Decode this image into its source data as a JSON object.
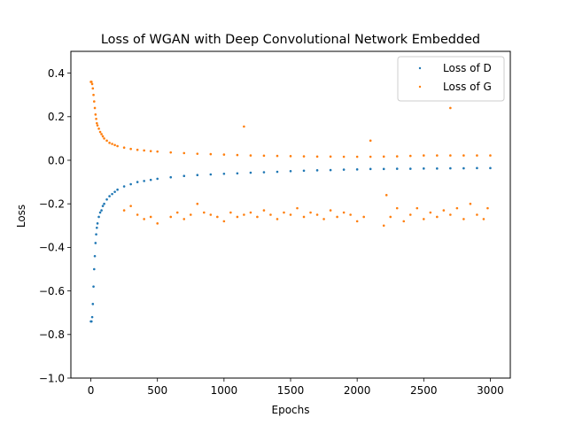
{
  "chart_data": {
    "type": "scatter",
    "title": "Loss of WGAN with Deep Convolutional Network Embedded",
    "xlabel": "Epochs",
    "ylabel": "Loss",
    "xlim": [
      -150,
      3150
    ],
    "ylim": [
      -1.0,
      0.5
    ],
    "xticks": [
      0,
      500,
      1000,
      1500,
      2000,
      2500,
      3000
    ],
    "xtick_labels": [
      "0",
      "500",
      "1000",
      "1500",
      "2000",
      "2500",
      "3000"
    ],
    "yticks": [
      -1.0,
      -0.8,
      -0.6,
      -0.4,
      -0.2,
      0.0,
      0.2,
      0.4
    ],
    "ytick_labels": [
      "−1.0",
      "−0.8",
      "−0.6",
      "−0.4",
      "−0.2",
      "0.0",
      "0.2",
      "0.4"
    ],
    "grid": false,
    "legend_position": "top-right",
    "series": [
      {
        "name": "Loss of D",
        "color": "#1f77b4",
        "x": [
          0,
          5,
          10,
          15,
          20,
          25,
          30,
          35,
          40,
          45,
          50,
          60,
          70,
          80,
          90,
          100,
          120,
          140,
          160,
          180,
          200,
          250,
          300,
          350,
          400,
          450,
          500,
          600,
          700,
          800,
          900,
          1000,
          1100,
          1200,
          1300,
          1400,
          1500,
          1600,
          1700,
          1800,
          1900,
          2000,
          2100,
          2200,
          2300,
          2400,
          2500,
          2600,
          2700,
          2800,
          2900,
          3000
        ],
        "y": [
          -0.74,
          -0.74,
          -0.72,
          -0.66,
          -0.58,
          -0.5,
          -0.44,
          -0.38,
          -0.34,
          -0.31,
          -0.29,
          -0.26,
          -0.24,
          -0.23,
          -0.21,
          -0.2,
          -0.18,
          -0.165,
          -0.155,
          -0.145,
          -0.135,
          -0.12,
          -0.11,
          -0.1,
          -0.095,
          -0.09,
          -0.085,
          -0.078,
          -0.072,
          -0.068,
          -0.065,
          -0.062,
          -0.06,
          -0.057,
          -0.055,
          -0.053,
          -0.05,
          -0.048,
          -0.046,
          -0.045,
          -0.043,
          -0.042,
          -0.04,
          -0.04,
          -0.039,
          -0.039,
          -0.038,
          -0.038,
          -0.037,
          -0.037,
          -0.036,
          -0.036
        ]
      },
      {
        "name": "Loss of G",
        "color": "#ff7f0e",
        "x": [
          0,
          5,
          10,
          15,
          20,
          25,
          30,
          35,
          40,
          45,
          50,
          60,
          70,
          80,
          90,
          100,
          120,
          140,
          160,
          180,
          200,
          250,
          300,
          350,
          400,
          450,
          500,
          600,
          700,
          800,
          900,
          1000,
          1100,
          1200,
          1300,
          1400,
          1500,
          1600,
          1700,
          1800,
          1900,
          2000,
          2100,
          2200,
          2300,
          2400,
          2500,
          2600,
          2700,
          2800,
          2900,
          3000
        ],
        "y": [
          0.36,
          0.36,
          0.35,
          0.33,
          0.3,
          0.27,
          0.24,
          0.21,
          0.19,
          0.17,
          0.16,
          0.145,
          0.13,
          0.12,
          0.11,
          0.1,
          0.09,
          0.08,
          0.075,
          0.07,
          0.065,
          0.058,
          0.052,
          0.048,
          0.045,
          0.042,
          0.04,
          0.036,
          0.033,
          0.03,
          0.028,
          0.026,
          0.024,
          0.022,
          0.021,
          0.02,
          0.019,
          0.018,
          0.017,
          0.017,
          0.016,
          0.016,
          0.016,
          0.017,
          0.018,
          0.02,
          0.022,
          0.022,
          0.022,
          0.022,
          0.022,
          0.022
        ]
      },
      {
        "name": "",
        "color": "#ff7f0e",
        "x": [
          250,
          300,
          350,
          400,
          450,
          500,
          600,
          650,
          700,
          750,
          800,
          850,
          900,
          950,
          1000,
          1050,
          1100,
          1150,
          1200,
          1250,
          1300,
          1350,
          1400,
          1450,
          1500,
          1550,
          1600,
          1650,
          1700,
          1750,
          1800,
          1850,
          1900,
          1950,
          2000,
          2050,
          2200,
          2220,
          2250,
          2300,
          2350,
          2400,
          2450,
          2500,
          2550,
          2600,
          2650,
          2700,
          2750,
          2800,
          2850,
          2900,
          2950,
          2980
        ],
        "y": [
          -0.23,
          -0.21,
          -0.25,
          -0.27,
          -0.26,
          -0.29,
          -0.26,
          -0.24,
          -0.27,
          -0.25,
          -0.2,
          -0.24,
          -0.25,
          -0.26,
          -0.28,
          -0.24,
          -0.26,
          -0.25,
          -0.24,
          -0.26,
          -0.23,
          -0.25,
          -0.27,
          -0.24,
          -0.25,
          -0.22,
          -0.26,
          -0.24,
          -0.25,
          -0.27,
          -0.23,
          -0.26,
          -0.24,
          -0.25,
          -0.28,
          -0.26,
          -0.3,
          -0.16,
          -0.26,
          -0.22,
          -0.28,
          -0.25,
          -0.22,
          -0.27,
          -0.24,
          -0.26,
          -0.23,
          -0.25,
          -0.22,
          -0.27,
          -0.2,
          -0.25,
          -0.27,
          -0.22
        ]
      },
      {
        "name": "",
        "color": "#ff7f0e",
        "x": [
          1150,
          2100,
          2700
        ],
        "y": [
          0.155,
          0.09,
          0.24
        ]
      }
    ]
  }
}
